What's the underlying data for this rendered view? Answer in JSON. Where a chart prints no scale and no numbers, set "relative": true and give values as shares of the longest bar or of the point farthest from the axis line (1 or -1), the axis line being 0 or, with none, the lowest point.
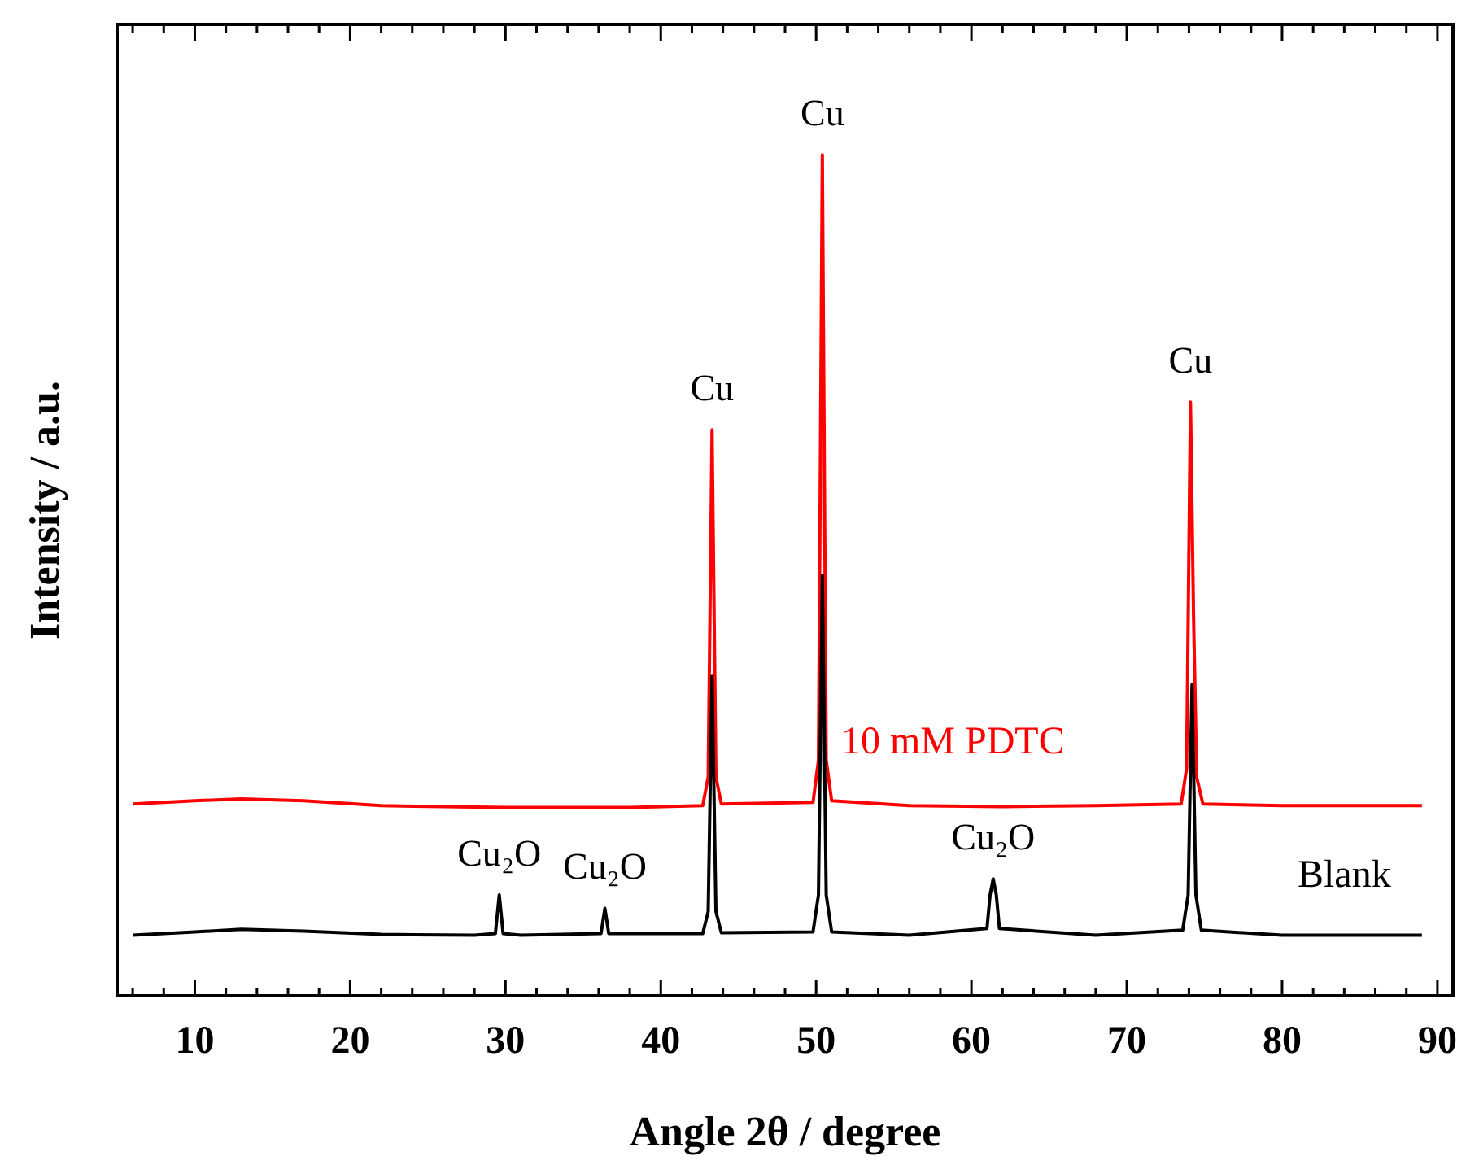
{
  "chart_data": {
    "type": "line",
    "relative": true,
    "xlabel": "Angle 2θ / degree",
    "ylabel": "Intensity / a.u.",
    "xlim": [
      5,
      91
    ],
    "xticks": [
      10,
      20,
      30,
      40,
      50,
      60,
      70,
      80,
      90
    ],
    "legend": false,
    "line_style": "solid",
    "series": [
      {
        "name": "10 mM PDTC",
        "color": "#ff0000",
        "x": [
          6,
          10,
          13,
          17,
          22,
          30,
          38,
          42.7,
          43.05,
          43.3,
          43.55,
          43.9,
          49.8,
          50.15,
          50.4,
          50.65,
          51,
          56,
          62,
          68,
          73.5,
          73.85,
          74.1,
          74.3,
          74.5,
          74.9,
          80,
          89
        ],
        "values": [
          0.228,
          0.232,
          0.234,
          0.232,
          0.226,
          0.224,
          0.224,
          0.226,
          0.26,
          0.673,
          0.26,
          0.228,
          0.23,
          0.28,
          1.0,
          0.28,
          0.232,
          0.226,
          0.225,
          0.226,
          0.228,
          0.27,
          0.706,
          0.45,
          0.26,
          0.228,
          0.226,
          0.226
        ]
      },
      {
        "name": "Blank",
        "color": "#000000",
        "x": [
          6,
          10,
          13,
          17,
          22,
          28,
          29.35,
          29.6,
          29.85,
          31,
          36.15,
          36.4,
          36.65,
          42.7,
          43.05,
          43.3,
          43.55,
          43.9,
          49.8,
          50.15,
          50.4,
          50.65,
          51,
          56,
          61,
          61.2,
          61.4,
          61.6,
          61.8,
          68,
          73.6,
          73.95,
          74.2,
          74.45,
          74.8,
          80,
          89
        ],
        "values": [
          0.072,
          0.076,
          0.079,
          0.077,
          0.073,
          0.072,
          0.074,
          0.12,
          0.074,
          0.072,
          0.074,
          0.104,
          0.074,
          0.074,
          0.1,
          0.38,
          0.1,
          0.075,
          0.076,
          0.12,
          0.5,
          0.12,
          0.076,
          0.072,
          0.08,
          0.12,
          0.139,
          0.12,
          0.08,
          0.072,
          0.078,
          0.12,
          0.37,
          0.12,
          0.078,
          0.072,
          0.072
        ]
      }
    ],
    "annotations": [
      {
        "text": "Cu",
        "x": 43.3,
        "y": 0.673
      },
      {
        "text": "Cu",
        "x": 50.4,
        "y": 1.0
      },
      {
        "text": "Cu",
        "x": 74.1,
        "y": 0.706
      },
      {
        "text": "Cu₂O",
        "x": 29.6,
        "y": 0.12
      },
      {
        "text": "Cu₂O",
        "x": 36.4,
        "y": 0.104
      },
      {
        "text": "Cu₂O",
        "x": 61.4,
        "y": 0.139
      }
    ]
  }
}
